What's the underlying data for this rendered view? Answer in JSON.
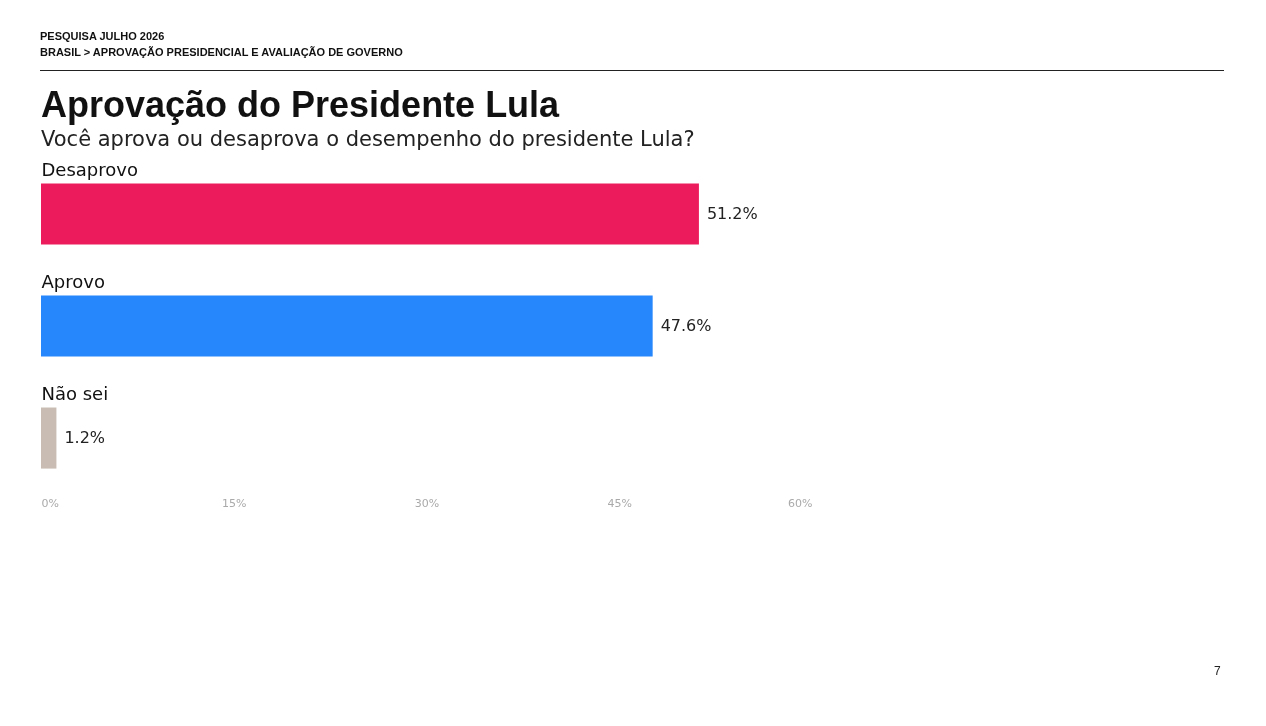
{
  "chart_data": {
    "type": "bar",
    "orientation": "horizontal",
    "title": "Aprovação do Presidente Lula",
    "subtitle": "Você aprova ou desaprova o desempenho do presidente Lula?",
    "categories": [
      "Desaprovo",
      "Aprovo",
      "Não sei"
    ],
    "values": [
      51.2,
      47.6,
      1.2
    ],
    "colors": [
      "#ec1c5c",
      "#2686fb",
      "#c9bcb2"
    ],
    "value_labels": [
      "51.2%",
      "47.6%",
      "1.2%"
    ],
    "xlim": [
      0,
      60
    ],
    "xticks": [
      {
        "value": 0,
        "label": "0%"
      },
      {
        "value": 15,
        "label": "15%"
      },
      {
        "value": 30,
        "label": "30%"
      },
      {
        "value": 45,
        "label": "45%"
      },
      {
        "value": 60,
        "label": "60%"
      }
    ],
    "grid": false,
    "annotations": [
      "PESQUISA JULHO 2026",
      "BRASIL > APROVAÇÃO PRESIDENCIAL E AVALIAÇÃO DE GOVERNO",
      "7"
    ]
  }
}
